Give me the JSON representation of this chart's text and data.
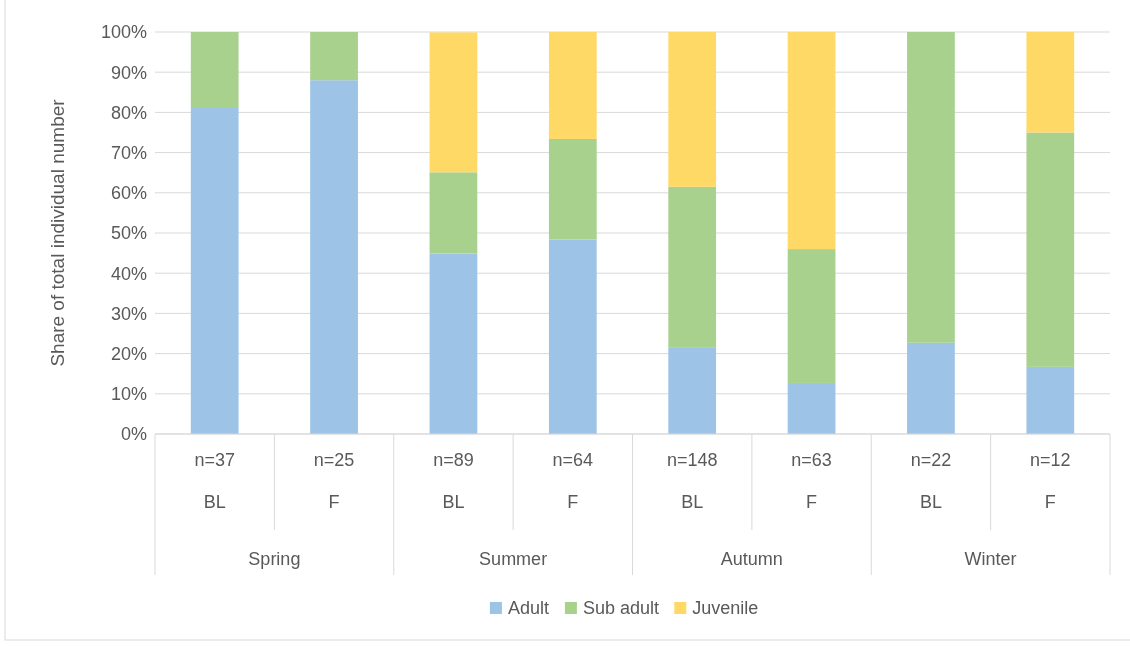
{
  "chart_data": {
    "type": "bar",
    "stacked": true,
    "ylabel": "Share of total individual number",
    "categories": [
      "n=37\nBL",
      "n=25\nF",
      "n=89\nBL",
      "n=64\nF",
      "n=148\nBL",
      "n=63\nF",
      "n=22\nBL",
      "n=12\nF"
    ],
    "annotations": [
      "Spring",
      "Summer",
      "Autumn",
      "Winter"
    ],
    "series": [
      {
        "name": "Adult",
        "color": "#9dc3e6",
        "values": [
          81.1,
          88,
          44.9,
          48.4,
          21.6,
          12.7,
          22.7,
          16.7
        ]
      },
      {
        "name": "Sub adult",
        "color": "#a9d18e",
        "values": [
          18.9,
          12,
          20.2,
          25,
          39.9,
          33.3,
          77.3,
          58.3
        ]
      },
      {
        "name": "Juvenile",
        "color": "#ffd966",
        "values": [
          0,
          0,
          34.8,
          26.6,
          38.5,
          54,
          0,
          25
        ]
      }
    ],
    "ylim": [
      0,
      100
    ],
    "yticks": [
      {
        "value": 0,
        "label": "0%"
      },
      {
        "value": 10,
        "label": "10%"
      },
      {
        "value": 20,
        "label": "20%"
      },
      {
        "value": 30,
        "label": "30%"
      },
      {
        "value": 40,
        "label": "40%"
      },
      {
        "value": 50,
        "label": "50%"
      },
      {
        "value": 60,
        "label": "60%"
      },
      {
        "value": 70,
        "label": "70%"
      },
      {
        "value": 80,
        "label": "80%"
      },
      {
        "value": 90,
        "label": "90%"
      },
      {
        "value": 100,
        "label": "100%"
      }
    ],
    "grid": "y",
    "legend": "bottom"
  }
}
